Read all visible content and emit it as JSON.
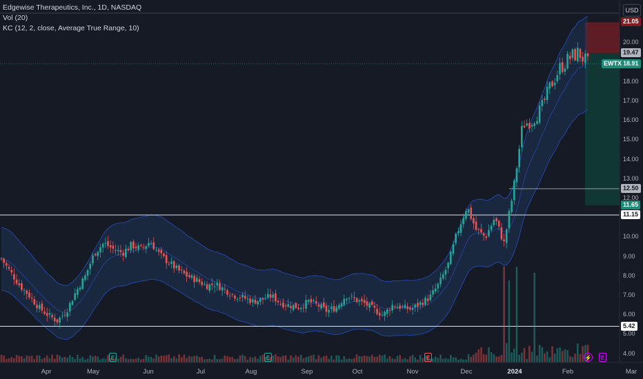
{
  "legend": {
    "title": "Edgewise Therapeutics, Inc., 1D, NASDAQ",
    "volume": "Vol (20)",
    "keltner": "KC (12, 2, close, Average True Range, 10)"
  },
  "currency": "USD",
  "colors": {
    "background": "#161a25",
    "up": "#26a69a",
    "down": "#ef5350",
    "channel_fill": "#1f3a5f",
    "channel_line": "#2962ff",
    "stop_zone": "#6b1f24",
    "target_zone": "#0f3b35",
    "hline": "#e0e3eb"
  },
  "price_axis": {
    "labels": [
      "20.00",
      "18.00",
      "17.00",
      "16.00",
      "15.00",
      "14.00",
      "13.00",
      "12.00",
      "10.00",
      "9.00",
      "8.00",
      "7.00",
      "6.00",
      "5.00",
      "4.00"
    ],
    "tags": [
      {
        "value": "21.05",
        "bg": "#7f1d22",
        "fg": "#ffffff",
        "price": 21.05
      },
      {
        "value": "19.47",
        "bg": "#b2b5be",
        "fg": "#131722",
        "price": 19.47
      },
      {
        "value": "18.91",
        "bg": "#1f8a78",
        "fg": "#ffffff",
        "price": 18.91,
        "ticker": "EWTX"
      },
      {
        "value": "12.50",
        "bg": "#b2b5be",
        "fg": "#131722",
        "price": 12.5
      },
      {
        "value": "11.65",
        "bg": "#1f8a78",
        "fg": "#ffffff",
        "price": 11.65
      },
      {
        "value": "11.15",
        "bg": "#ffffff",
        "fg": "#131722",
        "price": 11.15
      },
      {
        "value": "5.42",
        "bg": "#ffffff",
        "fg": "#131722",
        "price": 5.42
      }
    ]
  },
  "time_axis": [
    "Apr",
    "May",
    "Jun",
    "Jul",
    "Aug",
    "Sep",
    "Oct",
    "Nov",
    "Dec",
    "2024",
    "Feb",
    "Mar"
  ],
  "events": [
    {
      "label": "E",
      "kind": "earnings"
    },
    {
      "label": "E",
      "kind": "earnings"
    },
    {
      "label": "E",
      "kind": "earnings-miss"
    },
    {
      "label": "E",
      "kind": "earnings-upcoming"
    },
    {
      "label": "⚡",
      "kind": "split"
    }
  ],
  "chart_data": {
    "type": "candlestick",
    "title": "Edgewise Therapeutics, Inc., 1D, NASDAQ",
    "ylim": [
      3.7,
      21.4
    ],
    "horizontal_lines": [
      11.15,
      5.42,
      12.5
    ],
    "position": {
      "entry": 19.47,
      "stop": 21.05,
      "target": 11.65
    },
    "last_price": 18.91,
    "months": [
      "Apr",
      "May",
      "Jun",
      "Jul",
      "Aug",
      "Sep",
      "Oct",
      "Nov",
      "Dec",
      "2024",
      "Feb",
      "Mar"
    ],
    "close_path": [
      [
        0,
        8.9
      ],
      [
        10,
        8.2
      ],
      [
        20,
        7.5
      ],
      [
        30,
        7.0
      ],
      [
        40,
        6.4
      ],
      [
        50,
        6.0
      ],
      [
        60,
        5.7
      ],
      [
        70,
        6.2
      ],
      [
        80,
        7.2
      ],
      [
        90,
        8.0
      ],
      [
        100,
        9.2
      ],
      [
        110,
        9.7
      ],
      [
        120,
        9.4
      ],
      [
        130,
        9.2
      ],
      [
        140,
        9.6
      ],
      [
        150,
        9.4
      ],
      [
        160,
        9.8
      ],
      [
        170,
        9.1
      ],
      [
        180,
        8.7
      ],
      [
        190,
        8.3
      ],
      [
        200,
        8.0
      ],
      [
        210,
        7.8
      ],
      [
        220,
        7.5
      ],
      [
        230,
        7.6
      ],
      [
        240,
        7.3
      ],
      [
        250,
        7.0
      ],
      [
        260,
        6.9
      ],
      [
        270,
        6.7
      ],
      [
        280,
        6.8
      ],
      [
        290,
        7.0
      ],
      [
        300,
        6.6
      ],
      [
        310,
        6.5
      ],
      [
        320,
        6.4
      ],
      [
        330,
        6.7
      ],
      [
        340,
        6.5
      ],
      [
        350,
        6.2
      ],
      [
        360,
        6.4
      ],
      [
        370,
        7.0
      ],
      [
        380,
        6.8
      ],
      [
        390,
        6.6
      ],
      [
        400,
        6.3
      ],
      [
        410,
        6.0
      ],
      [
        420,
        6.5
      ],
      [
        430,
        6.4
      ],
      [
        440,
        6.3
      ],
      [
        450,
        6.6
      ],
      [
        460,
        6.9
      ],
      [
        470,
        7.6
      ],
      [
        480,
        8.6
      ],
      [
        490,
        10.3
      ],
      [
        500,
        11.6
      ],
      [
        510,
        10.4
      ],
      [
        520,
        10.0
      ],
      [
        530,
        11.0
      ],
      [
        540,
        9.7
      ],
      [
        550,
        12.4
      ],
      [
        560,
        15.8
      ],
      [
        570,
        16.0
      ],
      [
        580,
        16.6
      ],
      [
        590,
        17.8
      ],
      [
        600,
        18.7
      ],
      [
        610,
        19.2
      ],
      [
        620,
        19.5
      ],
      [
        630,
        18.9
      ]
    ]
  }
}
